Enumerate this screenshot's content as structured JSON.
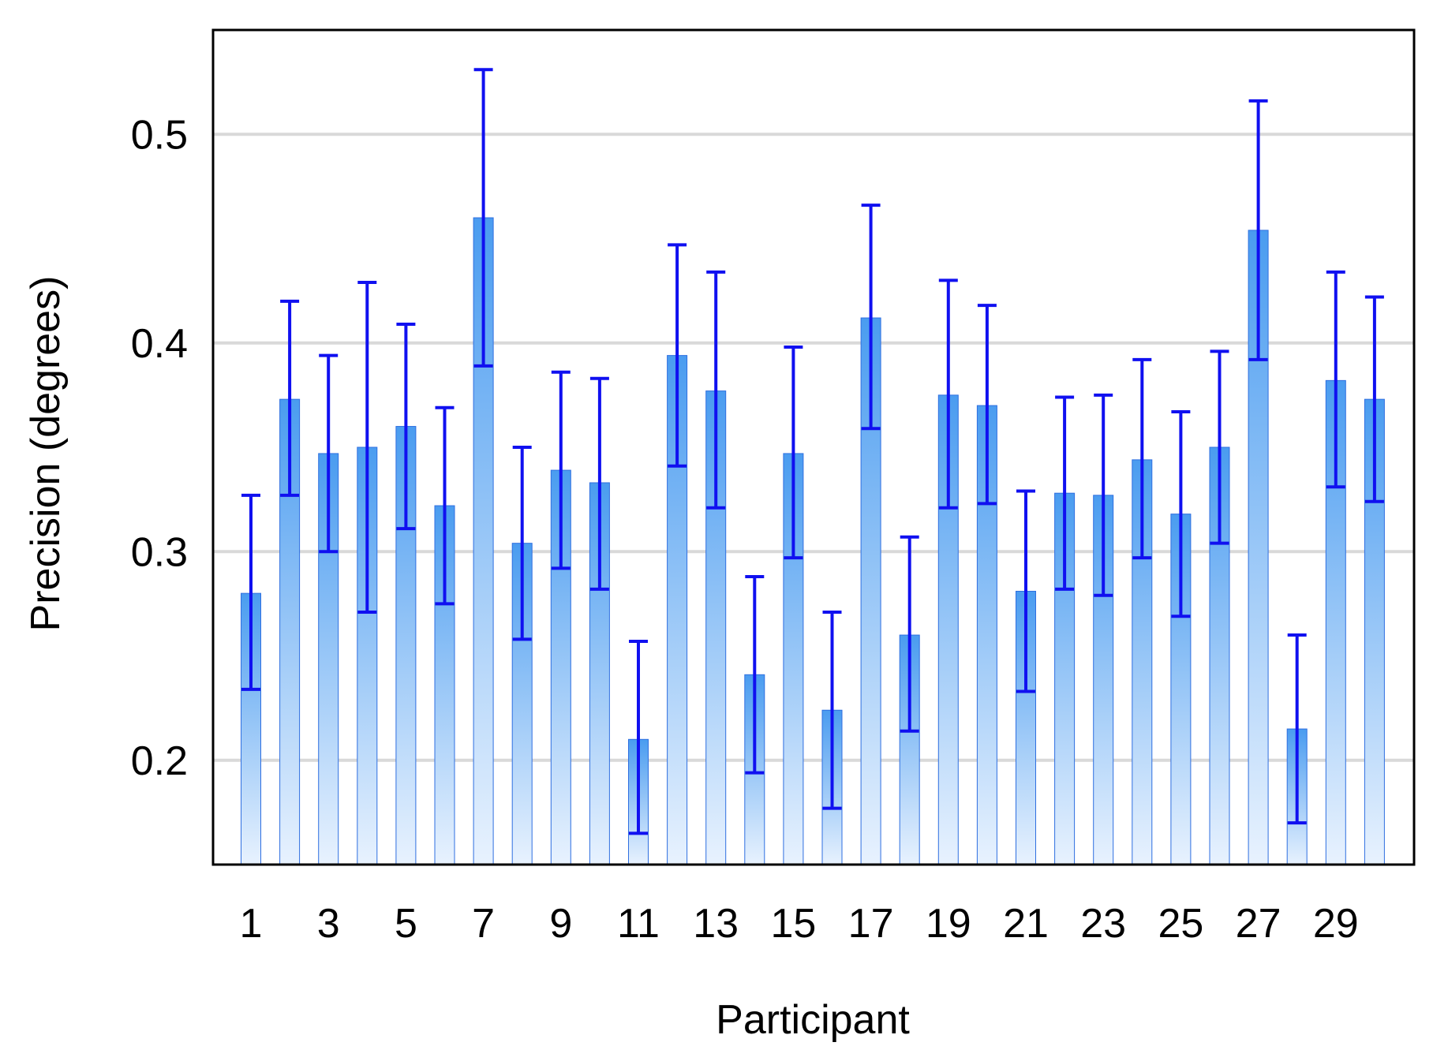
{
  "chart_data": {
    "type": "bar",
    "xlabel": "Participant",
    "ylabel": "Precision (degrees)",
    "ylim": [
      0.15,
      0.55
    ],
    "yticks": [
      0.2,
      0.3,
      0.4,
      0.5
    ],
    "ytick_labels": [
      "0.2",
      "0.3",
      "0.4",
      "0.5"
    ],
    "grid": "horizontal",
    "categories": [
      "1",
      "2",
      "3",
      "4",
      "5",
      "6",
      "7",
      "8",
      "9",
      "10",
      "11",
      "12",
      "13",
      "14",
      "15",
      "16",
      "17",
      "18",
      "19",
      "20",
      "21",
      "22",
      "23",
      "24",
      "25",
      "26",
      "27",
      "28",
      "29",
      "30"
    ],
    "xtick_labels": [
      "1",
      "",
      "3",
      "",
      "5",
      "",
      "7",
      "",
      "9",
      "",
      "11",
      "",
      "13",
      "",
      "15",
      "",
      "17",
      "",
      "19",
      "",
      "21",
      "",
      "23",
      "",
      "25",
      "",
      "27",
      "",
      "29",
      ""
    ],
    "values": [
      0.28,
      0.373,
      0.347,
      0.35,
      0.36,
      0.322,
      0.46,
      0.304,
      0.339,
      0.333,
      0.21,
      0.394,
      0.377,
      0.241,
      0.347,
      0.224,
      0.412,
      0.26,
      0.375,
      0.37,
      0.281,
      0.328,
      0.327,
      0.344,
      0.318,
      0.35,
      0.454,
      0.215,
      0.382,
      0.373
    ],
    "err_low": [
      0.234,
      0.327,
      0.3,
      0.271,
      0.311,
      0.275,
      0.389,
      0.258,
      0.292,
      0.282,
      0.165,
      0.341,
      0.321,
      0.194,
      0.297,
      0.177,
      0.359,
      0.214,
      0.321,
      0.323,
      0.233,
      0.282,
      0.279,
      0.297,
      0.269,
      0.304,
      0.392,
      0.17,
      0.331,
      0.324
    ],
    "err_high": [
      0.327,
      0.42,
      0.394,
      0.429,
      0.409,
      0.369,
      0.531,
      0.35,
      0.386,
      0.383,
      0.257,
      0.447,
      0.434,
      0.288,
      0.398,
      0.271,
      0.466,
      0.307,
      0.43,
      0.418,
      0.329,
      0.374,
      0.375,
      0.392,
      0.367,
      0.396,
      0.516,
      0.26,
      0.434,
      0.422
    ],
    "colors": {
      "bar_top": "#4a9cf0",
      "bar_bottom": "#e8f2fe",
      "bar_outline": "#2f6fe0",
      "error_bar": "#1010f0",
      "grid": "#d9d9d9",
      "axis": "#000000"
    }
  }
}
